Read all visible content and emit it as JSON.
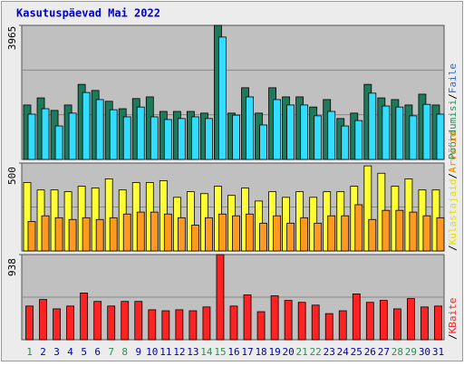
{
  "chart_data": {
    "type": "bar",
    "title": "Kasutuspäevad Mai 2022",
    "categories": [
      "1",
      "2",
      "3",
      "4",
      "5",
      "6",
      "7",
      "8",
      "9",
      "10",
      "11",
      "12",
      "13",
      "14",
      "15",
      "16",
      "17",
      "18",
      "19",
      "20",
      "21",
      "22",
      "23",
      "24",
      "25",
      "26",
      "27",
      "28",
      "29",
      "30",
      "31"
    ],
    "category_colors": [
      "#2e8b57",
      "#0000aa",
      "#0000aa",
      "#0000aa",
      "#0000aa",
      "#0000aa",
      "#2e8b57",
      "#2e8b57",
      "#0000aa",
      "#0000aa",
      "#0000aa",
      "#0000aa",
      "#0000aa",
      "#2e8b57",
      "#2e8b57",
      "#0000aa",
      "#0000aa",
      "#0000aa",
      "#0000aa",
      "#0000aa",
      "#2e8b57",
      "#2e8b57",
      "#0000aa",
      "#0000aa",
      "#0000aa",
      "#0000aa",
      "#0000aa",
      "#2e8b57",
      "#2e8b57",
      "#0000aa",
      "#0000aa"
    ],
    "legend_separator": "/",
    "panels": [
      {
        "ylim": [
          0,
          3965
        ],
        "yticks": [
          3965
        ],
        "series": [
          {
            "name": "Pöördumisi",
            "color": "#1f7a5c",
            "text_color": "#2e8b57",
            "values": [
              1610,
              1820,
              1450,
              1610,
              2220,
              2040,
              1720,
              1500,
              1800,
              1850,
              1420,
              1420,
              1420,
              1370,
              3965,
              1370,
              2120,
              1370,
              2120,
              1850,
              1850,
              1550,
              1770,
              1210,
              1370,
              2220,
              1820,
              1770,
              1610,
              1930,
              1610
            ]
          },
          {
            "name": "Faile",
            "color": "#33ddff",
            "text_color": "#3366cc",
            "values": [
              1340,
              1500,
              990,
              1370,
              1980,
              1770,
              1470,
              1260,
              1550,
              1260,
              1180,
              1210,
              1260,
              1210,
              3620,
              1310,
              1850,
              1020,
              1770,
              1610,
              1610,
              1290,
              1420,
              990,
              1150,
              1960,
              1580,
              1550,
              1290,
              1630,
              1340
            ]
          }
        ]
      },
      {
        "ylim": [
          0,
          500
        ],
        "yticks": [
          500
        ],
        "series": [
          {
            "name": "Külastajaid",
            "color": "#ffff33",
            "text_color": "#e0e000",
            "values": [
              389,
              347,
              347,
              337,
              368,
              358,
              410,
              347,
              389,
              389,
              400,
              305,
              337,
              326,
              368,
              316,
              358,
              284,
              337,
              305,
              337,
              305,
              337,
              337,
              368,
              484,
              442,
              368,
              410,
              347,
              347
            ]
          },
          {
            "name": "Arvutid",
            "color": "#ff9922",
            "text_color": "#ee8800",
            "values": [
              168,
              200,
              189,
              179,
              189,
              179,
              189,
              210,
              221,
              221,
              210,
              189,
              147,
              189,
              210,
              200,
              210,
              158,
              200,
              158,
              189,
              158,
              200,
              200,
              263,
              179,
              231,
              231,
              221,
              200,
              189
            ]
          }
        ]
      },
      {
        "ylim": [
          0,
          938
        ],
        "yticks": [
          938
        ],
        "series": [
          {
            "name": "KBaite",
            "color": "#ff2222",
            "text_color": "#ee2222",
            "values": [
              371,
              443,
              340,
              371,
              515,
              422,
              371,
              422,
              422,
              330,
              319,
              330,
              319,
              361,
              938,
              371,
              494,
              309,
              484,
              433,
              412,
              381,
              288,
              319,
              505,
              412,
              433,
              340,
              453,
              361,
              371
            ]
          }
        ]
      }
    ]
  }
}
